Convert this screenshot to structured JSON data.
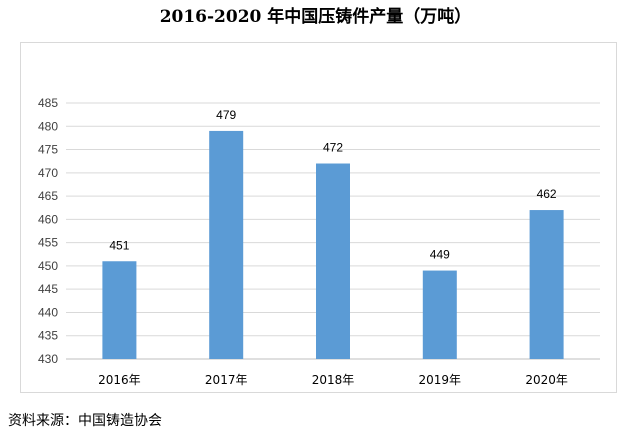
{
  "title": "2016-2020 年中国压铸件产量（万吨）",
  "source": "资料来源：中国铸造协会",
  "colors": {
    "bar": "#5b9bd5",
    "grid": "#d9d9d9",
    "frame": "#d9d9d9"
  },
  "chart_data": {
    "type": "bar",
    "title": "2016-2020 年中国压铸件产量（万吨）",
    "categories": [
      "2016年",
      "2017年",
      "2018年",
      "2019年",
      "2020年"
    ],
    "values": [
      451,
      479,
      472,
      449,
      462
    ],
    "data_labels": [
      "451",
      "479",
      "472",
      "449",
      "462"
    ],
    "yticks": [
      "430",
      "435",
      "440",
      "445",
      "450",
      "455",
      "460",
      "465",
      "470",
      "475",
      "480",
      "485"
    ],
    "ylim": [
      430,
      485
    ],
    "grid": true,
    "legend": "none"
  }
}
